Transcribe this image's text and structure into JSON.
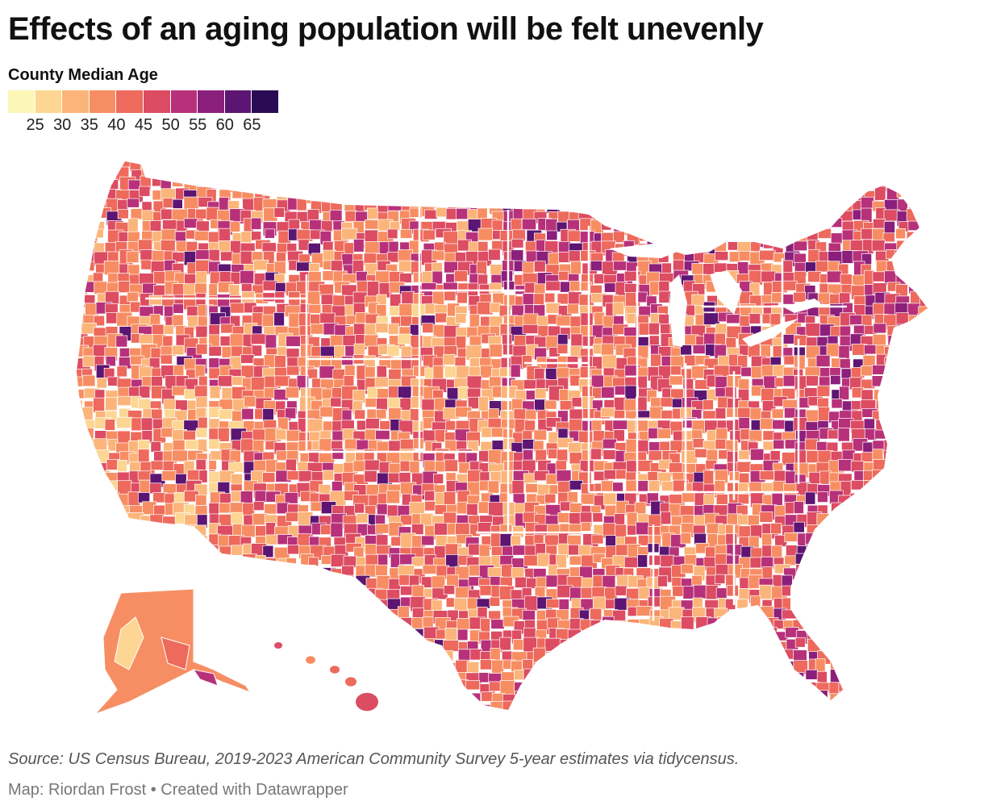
{
  "title": "Effects of an aging population will be felt unevenly",
  "legend": {
    "title": "County Median Age",
    "ticks": [
      "25",
      "30",
      "35",
      "40",
      "45",
      "50",
      "55",
      "60",
      "65"
    ],
    "colors": [
      "#fcf7b6",
      "#fcd692",
      "#fbb57a",
      "#f78e63",
      "#ed6a5c",
      "#dc4c62",
      "#b7317a",
      "#8b1f7c",
      "#5c1572",
      "#2a0c55"
    ]
  },
  "source": "Source: US Census Bureau, 2019-2023 American Community Survey 5-year estimates via tidycensus.",
  "credit": "Map: Riordan Frost • Created with Datawrapper",
  "map": {
    "type": "choropleth",
    "geography": "US counties",
    "variable": "County Median Age",
    "border_color": "#ffffff"
  }
}
